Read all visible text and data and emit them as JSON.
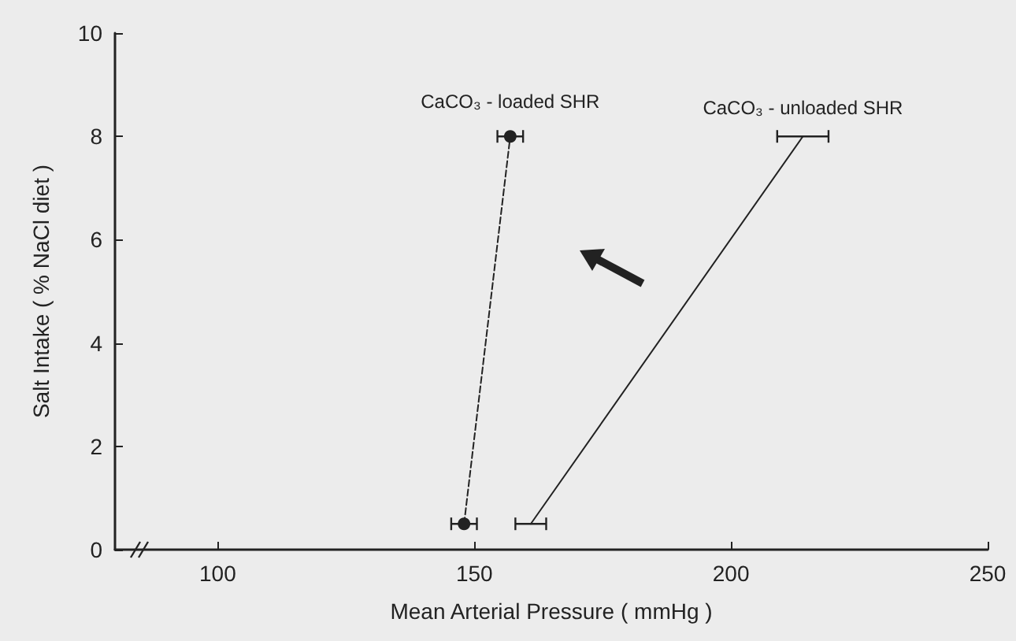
{
  "chart_data": {
    "type": "line",
    "xlabel": "Mean Arterial Pressure ( mmHg )",
    "ylabel": "Salt Intake ( % NaCl diet )",
    "xlim": [
      80,
      250
    ],
    "xticks": [
      100,
      150,
      200,
      250
    ],
    "ylim": [
      0,
      10
    ],
    "yticks": [
      0,
      2,
      4,
      6,
      8,
      10
    ],
    "grid": false,
    "legend": false,
    "series": [
      {
        "name": "CaCO₃ - loaded SHR",
        "color": "#222222",
        "x": [
          148,
          157
        ],
        "values": [
          0.5,
          8
        ],
        "xerrors": [
          2.5,
          2.5
        ],
        "marker": "circle",
        "line_style": "dashed"
      },
      {
        "name": "CaCO₃ - unloaded SHR",
        "color": "#222222",
        "x": [
          161,
          214
        ],
        "values": [
          0.5,
          8
        ],
        "xerrors": [
          3,
          5
        ],
        "marker": "none",
        "line_style": "solid"
      }
    ]
  }
}
